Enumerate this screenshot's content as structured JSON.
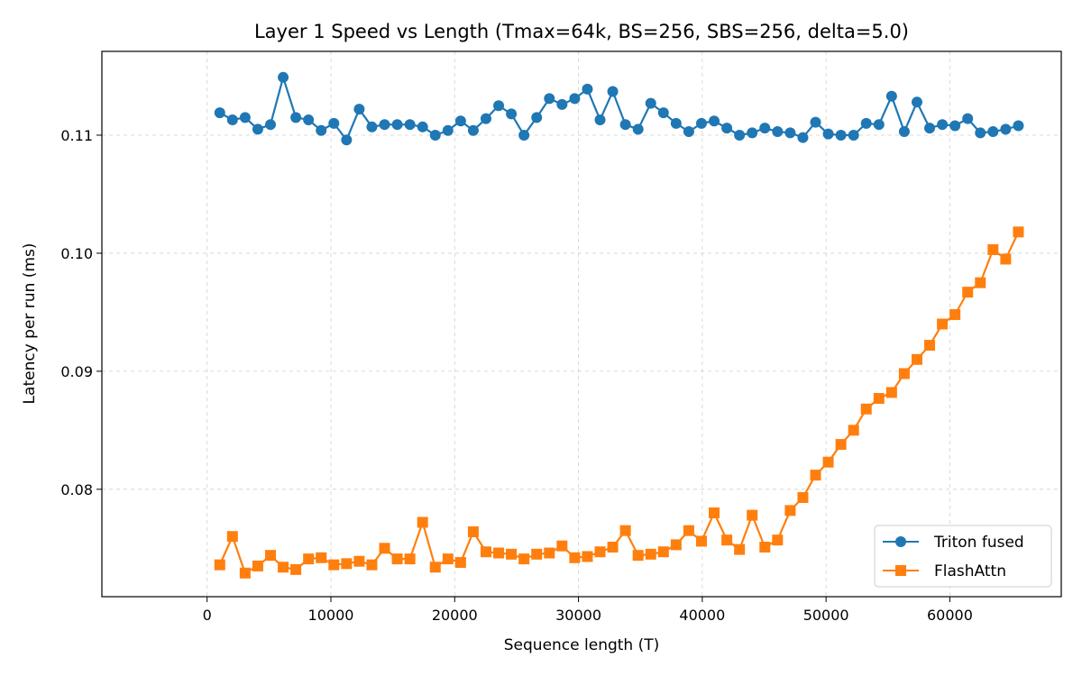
{
  "chart_data": {
    "type": "line",
    "title": "Layer 1 Speed vs Length (Tmax=64k, BS=256, SBS=256, delta=5.0)",
    "xlabel": "Sequence length (T)",
    "ylabel": "Latency per run (ms)",
    "xlim": [
      -8500,
      69000
    ],
    "ylim": [
      0.0709,
      0.1171
    ],
    "xticks": [
      0,
      10000,
      20000,
      30000,
      40000,
      50000,
      60000
    ],
    "xtick_labels": [
      "0",
      "10000",
      "20000",
      "30000",
      "40000",
      "50000",
      "60000"
    ],
    "yticks": [
      0.08,
      0.09,
      0.1,
      0.11
    ],
    "ytick_labels": [
      "0.08",
      "0.09",
      "0.10",
      "0.11"
    ],
    "grid": true,
    "legend_position": "lower-right",
    "x": [
      1024,
      2048,
      3072,
      4096,
      5120,
      6144,
      7168,
      8192,
      9216,
      10240,
      11264,
      12288,
      13312,
      14336,
      15360,
      16384,
      17408,
      18432,
      19456,
      20480,
      21504,
      22528,
      23552,
      24576,
      25600,
      26624,
      27648,
      28672,
      29696,
      30720,
      31744,
      32768,
      33792,
      34816,
      35840,
      36864,
      37888,
      38912,
      39936,
      40960,
      41984,
      43008,
      44032,
      45056,
      46080,
      47104,
      48128,
      49152,
      50176,
      51200,
      52224,
      53248,
      54272,
      55296,
      56320,
      57344,
      58368,
      59392,
      60416,
      61440,
      62464,
      63488,
      64512,
      65536
    ],
    "series": [
      {
        "name": "Triton fused",
        "color": "#1f77b4",
        "marker": "circle",
        "values": [
          0.1119,
          0.1113,
          0.1115,
          0.1105,
          0.1109,
          0.1149,
          0.1115,
          0.1113,
          0.1104,
          0.111,
          0.1096,
          0.1122,
          0.1107,
          0.1109,
          0.1109,
          0.1109,
          0.1107,
          0.11,
          0.1104,
          0.1112,
          0.1104,
          0.1114,
          0.1125,
          0.1118,
          0.11,
          0.1115,
          0.1131,
          0.1126,
          0.1131,
          0.1139,
          0.1113,
          0.1137,
          0.1109,
          0.1105,
          0.1127,
          0.1119,
          0.111,
          0.1103,
          0.111,
          0.1112,
          0.1106,
          0.11,
          0.1102,
          0.1106,
          0.1103,
          0.1102,
          0.1098,
          0.1111,
          0.1101,
          0.11,
          0.11,
          0.111,
          0.1109,
          0.1133,
          0.1103,
          0.1128,
          0.1106,
          0.1109,
          0.1108,
          0.1114,
          0.1102,
          0.1103,
          0.1105,
          0.1108
        ]
      },
      {
        "name": "FlashAttn",
        "color": "#ff7f0e",
        "marker": "square",
        "values": [
          0.0736,
          0.076,
          0.0729,
          0.0735,
          0.0744,
          0.0734,
          0.0732,
          0.0741,
          0.0742,
          0.0736,
          0.0737,
          0.0739,
          0.0736,
          0.075,
          0.0741,
          0.0741,
          0.0772,
          0.0734,
          0.0741,
          0.0738,
          0.0764,
          0.0747,
          0.0746,
          0.0745,
          0.0741,
          0.0745,
          0.0746,
          0.0752,
          0.0742,
          0.0743,
          0.0747,
          0.0751,
          0.0765,
          0.0744,
          0.0745,
          0.0747,
          0.0753,
          0.0765,
          0.0756,
          0.078,
          0.0757,
          0.0749,
          0.0778,
          0.0751,
          0.0757,
          0.0782,
          0.0793,
          0.0812,
          0.0823,
          0.0838,
          0.085,
          0.0868,
          0.0877,
          0.0882,
          0.0898,
          0.091,
          0.0922,
          0.094,
          0.0948,
          0.0967,
          0.0975,
          0.1003,
          0.0995,
          0.1018
        ]
      }
    ]
  }
}
